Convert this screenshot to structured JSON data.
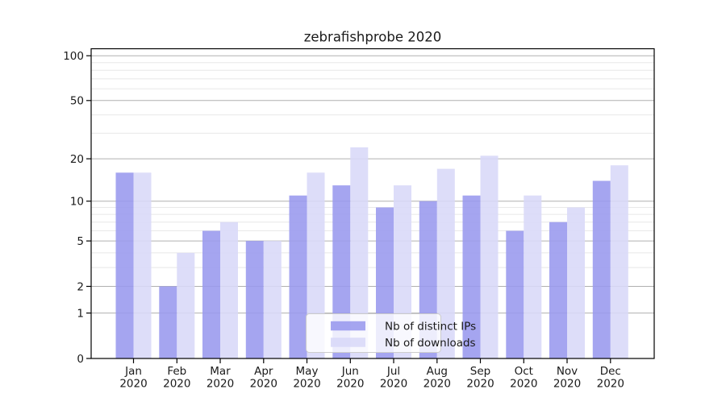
{
  "chart_data": {
    "type": "bar",
    "title": "zebrafishprobe 2020",
    "categories": [
      "Jan",
      "Feb",
      "Mar",
      "Apr",
      "May",
      "Jun",
      "Jul",
      "Aug",
      "Sep",
      "Oct",
      "Nov",
      "Dec"
    ],
    "x_year_label": "2020",
    "series": [
      {
        "name": "Nb of distinct IPs",
        "color": "#9898ee",
        "values": [
          16,
          2,
          6,
          5,
          11,
          13,
          9,
          10,
          11,
          6,
          7,
          14
        ]
      },
      {
        "name": "Nb of downloads",
        "color": "#d8d8f8",
        "values": [
          16,
          4,
          7,
          5,
          16,
          24,
          13,
          17,
          21,
          11,
          9,
          18
        ]
      }
    ],
    "yscale": "log10(1+y)",
    "y_major_ticks": [
      0,
      1,
      2,
      5,
      10,
      20,
      50,
      100
    ],
    "y_minor_gridlines": [
      3,
      4,
      6,
      7,
      8,
      9,
      30,
      40,
      60,
      70,
      80,
      90
    ],
    "ylim": [
      0,
      112
    ],
    "grid": "horizontal",
    "legend_position": "lower center"
  },
  "colors": {
    "major_grid": "#b0b0b0",
    "minor_grid": "#e8e8e8",
    "axis": "#000000",
    "legend_border": "#cccccc",
    "legend_bg": "rgba(255,255,255,0.8)"
  }
}
